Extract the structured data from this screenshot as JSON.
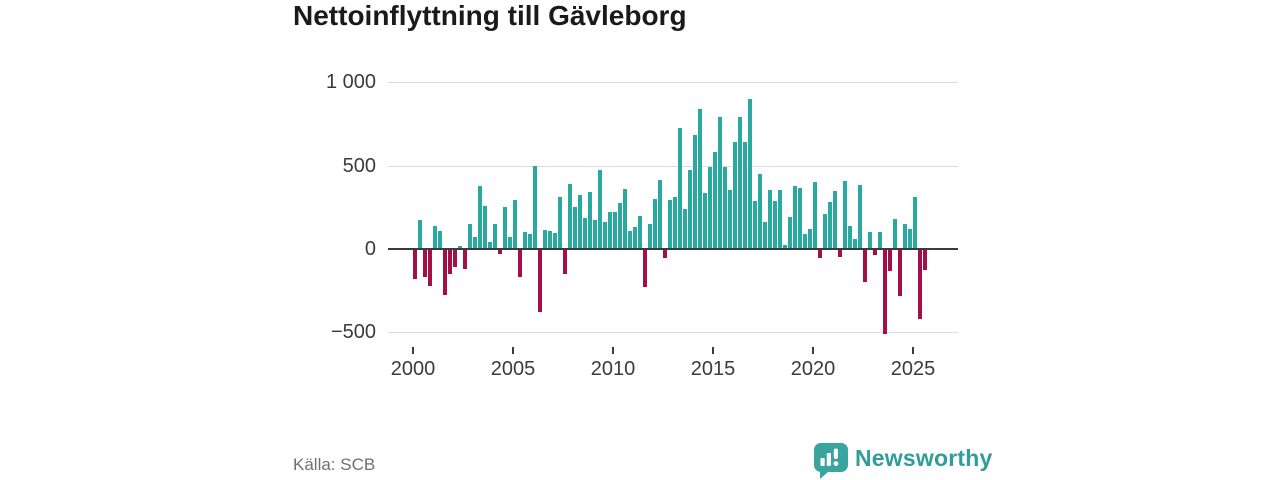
{
  "title": "Nettoinflyttning till Gävleborg",
  "source": "Källa: SCB",
  "logo": {
    "wordmark": "Newsworthy"
  },
  "colors": {
    "positive": "#2aa9a1",
    "negative": "#a31048",
    "brand": "#3aa59e",
    "grid": "#dcdcdc",
    "zero_line": "#3b3b3b",
    "title": "#1a1a1a",
    "source_text": "#6f6f6f"
  },
  "chart_data": {
    "type": "bar",
    "title": "Nettoinflyttning till Gävleborg",
    "xlabel": "",
    "ylabel": "",
    "grid": "horizontal",
    "legend": "none",
    "period": "quarterly",
    "start_period": "2000-Q1",
    "end_period": "2025-Q3",
    "ylim": [
      -560,
      1000
    ],
    "y_ticks": [
      {
        "label": "1 000",
        "value": 1000
      },
      {
        "label": "500",
        "value": 500
      },
      {
        "label": "0",
        "value": 0
      },
      {
        "label": "−500",
        "value": -500
      }
    ],
    "x_ticks": [
      2000,
      2005,
      2010,
      2015,
      2020,
      2025
    ],
    "series": [
      {
        "name": "Nettoinflyttning",
        "values": [
          -180,
          175,
          -170,
          -220,
          140,
          110,
          -275,
          -150,
          -110,
          20,
          -120,
          150,
          75,
          380,
          260,
          40,
          150,
          -30,
          250,
          70,
          295,
          -165,
          100,
          90,
          500,
          -380,
          115,
          110,
          95,
          315,
          -150,
          390,
          255,
          325,
          185,
          345,
          175,
          475,
          165,
          225,
          225,
          275,
          360,
          110,
          135,
          200,
          -230,
          150,
          300,
          415,
          -55,
          295,
          310,
          725,
          240,
          475,
          685,
          840,
          335,
          490,
          580,
          790,
          490,
          355,
          640,
          790,
          645,
          900,
          290,
          450,
          160,
          355,
          290,
          355,
          25,
          195,
          380,
          365,
          90,
          120,
          400,
          -55,
          210,
          285,
          350,
          -45,
          410,
          140,
          60,
          385,
          -200,
          100,
          -35,
          100,
          -510,
          -130,
          180,
          -280,
          150,
          120,
          310,
          -420,
          -125
        ]
      }
    ]
  }
}
